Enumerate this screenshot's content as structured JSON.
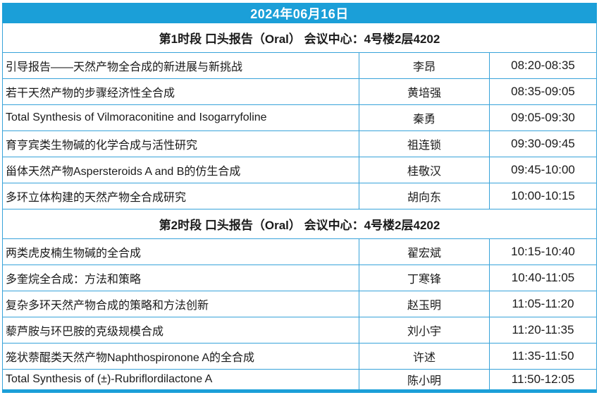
{
  "colors": {
    "header_blue": "#1b9fd8",
    "border_blue": "#38a3da",
    "text_color": "#1a1a1a"
  },
  "date_header": "2024年06月16日",
  "sections": [
    {
      "header": "第1时段 口头报告（Oral） 会议中心：4号楼2层4202",
      "rows": [
        {
          "title": "引导报告——天然产物全合成的新进展与新挑战",
          "speaker": "李昂",
          "time": "08:20-08:35"
        },
        {
          "title": "若干天然产物的步骤经济性全合成",
          "speaker": "黄培强",
          "time": "08:35-09:05"
        },
        {
          "title": "Total Synthesis of Vilmoraconitine and Isogarryfoline",
          "speaker": "秦勇",
          "time": "09:05-09:30"
        },
        {
          "title": "育亨宾类生物碱的化学合成与活性研究",
          "speaker": "祖连锁",
          "time": "09:30-09:45"
        },
        {
          "title": "甾体天然产物Aspersteroids A and B的仿生合成",
          "speaker": "桂敬汉",
          "time": "09:45-10:00"
        },
        {
          "title": "多环立体构建的天然产物全合成研究",
          "speaker": "胡向东",
          "time": "10:00-10:15"
        }
      ]
    },
    {
      "header": "第2时段 口头报告（Oral） 会议中心：4号楼2层4202",
      "rows": [
        {
          "title": "两类虎皮楠生物碱的全合成",
          "speaker": "翟宏斌",
          "time": "10:15-10:40"
        },
        {
          "title": "多奎烷全合成：方法和策略",
          "speaker": "丁寒锋",
          "time": "10:40-11:05"
        },
        {
          "title": "复杂多环天然产物合成的策略和方法创新",
          "speaker": "赵玉明",
          "time": "11:05-11:20"
        },
        {
          "title": "藜芦胺与环巴胺的克级规模合成",
          "speaker": "刘小宇",
          "time": "11:20-11:35"
        },
        {
          "title": "笼状萘醌类天然产物Naphthospironone A的全合成",
          "speaker": "许述",
          "time": "11:35-11:50"
        },
        {
          "title": "Total Synthesis of (±)-Rubriflordilactone A",
          "speaker": "陈小明",
          "time": "11:50-12:05"
        }
      ]
    }
  ]
}
